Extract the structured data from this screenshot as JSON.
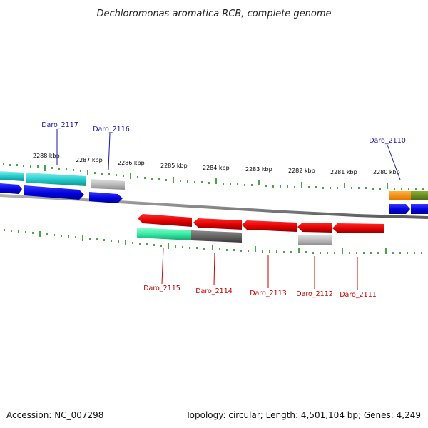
{
  "title": "Dechloromonas aromatica RCB, complete genome",
  "footer": {
    "accession": "Accession: NC_007298",
    "summary": "Topology: circular; Length: 4,501,104 bp; Genes: 4,249"
  },
  "scale_labels": [
    "2288 kbp",
    "2287 kbp",
    "2286 kbp",
    "2285 kbp",
    "2284 kbp",
    "2283 kbp",
    "2282 kbp",
    "2281 kbp",
    "2280 kbp"
  ],
  "top_gene_labels": [
    "Daro_2117",
    "Daro_2116",
    "Daro_2110"
  ],
  "bottom_gene_labels": [
    "Daro_2115",
    "Daro_2114",
    "Daro_2113",
    "Daro_2112",
    "Daro_2111"
  ],
  "colors": {
    "forward_cds": "#0a0ae6",
    "reverse_cds": "#e60000",
    "cyan_feature": "#20c8c8",
    "green_feature": "#30e8a0",
    "gray_feature": "#b8b8b8",
    "dark_gray_feature": "#606060",
    "orange_feature": "#f08c00",
    "olive_feature": "#6e8c1e",
    "tick_green": "#1e8c1e",
    "backbone": "#808080"
  }
}
